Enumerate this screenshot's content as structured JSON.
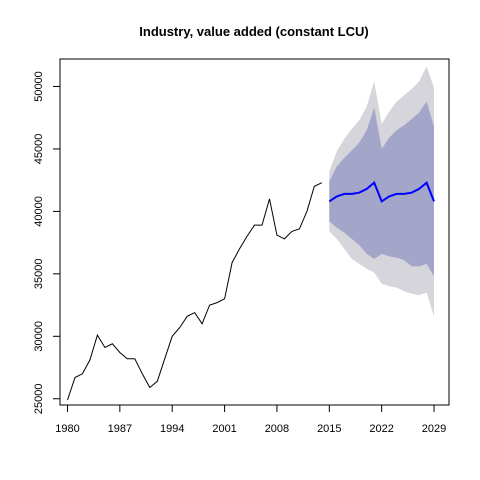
{
  "chart_data": {
    "type": "line",
    "title": "Industry, value added (constant LCU)",
    "xlabel": "",
    "ylabel": "",
    "xlim": [
      1979,
      2031
    ],
    "ylim": [
      24500,
      52200
    ],
    "x_ticks": [
      1980,
      1987,
      1994,
      2001,
      2008,
      2015,
      2022,
      2029
    ],
    "y_ticks": [
      25000,
      30000,
      35000,
      40000,
      45000,
      50000
    ],
    "grid": false,
    "legend": "none",
    "colors": {
      "history": "#000000",
      "forecast": "#0000ff",
      "band_80": "#a3a6c9",
      "band_95": "#d5d5db"
    },
    "series": [
      {
        "role": "history",
        "x": [
          1980,
          1981,
          1982,
          1983,
          1984,
          1985,
          1986,
          1987,
          1988,
          1989,
          1990,
          1991,
          1992,
          1993,
          1994,
          1995,
          1996,
          1997,
          1998,
          1999,
          2000,
          2001,
          2002,
          2003,
          2004,
          2005,
          2006,
          2007,
          2008,
          2009,
          2010,
          2011,
          2012,
          2013,
          2014
        ],
        "values": [
          24900,
          26700,
          27000,
          28100,
          30100,
          29100,
          29400,
          28700,
          28200,
          28200,
          27000,
          25900,
          26400,
          28200,
          30000,
          30700,
          31600,
          31900,
          31000,
          32500,
          32700,
          33000,
          35900,
          37000,
          38000,
          38900,
          38900,
          41000,
          38100,
          37800,
          38400,
          38600,
          40000,
          42000,
          42300
        ]
      },
      {
        "role": "forecast",
        "x": [
          2015,
          2016,
          2017,
          2018,
          2019,
          2020,
          2021,
          2022,
          2023,
          2024,
          2025,
          2026,
          2027,
          2028,
          2029
        ],
        "values": [
          40800,
          41200,
          41400,
          41400,
          41500,
          41800,
          42300,
          40800,
          41200,
          41400,
          41400,
          41500,
          41800,
          42300,
          40800
        ],
        "lower_80": [
          39200,
          38700,
          38300,
          37800,
          37300,
          36600,
          36200,
          36600,
          36400,
          36300,
          36100,
          35600,
          35600,
          35800,
          34800
        ],
        "upper_80": [
          42400,
          43600,
          44300,
          44900,
          45500,
          46500,
          48300,
          45000,
          45900,
          46500,
          46900,
          47400,
          47900,
          48800,
          46800
        ],
        "lower_95": [
          38400,
          37800,
          37000,
          36200,
          35800,
          35400,
          35100,
          34200,
          34000,
          33900,
          33600,
          33400,
          33300,
          33500,
          31600
        ],
        "upper_95": [
          43200,
          44800,
          45800,
          46600,
          47300,
          48400,
          50400,
          47000,
          48000,
          48800,
          49300,
          49800,
          50400,
          51600,
          49900
        ]
      }
    ]
  }
}
